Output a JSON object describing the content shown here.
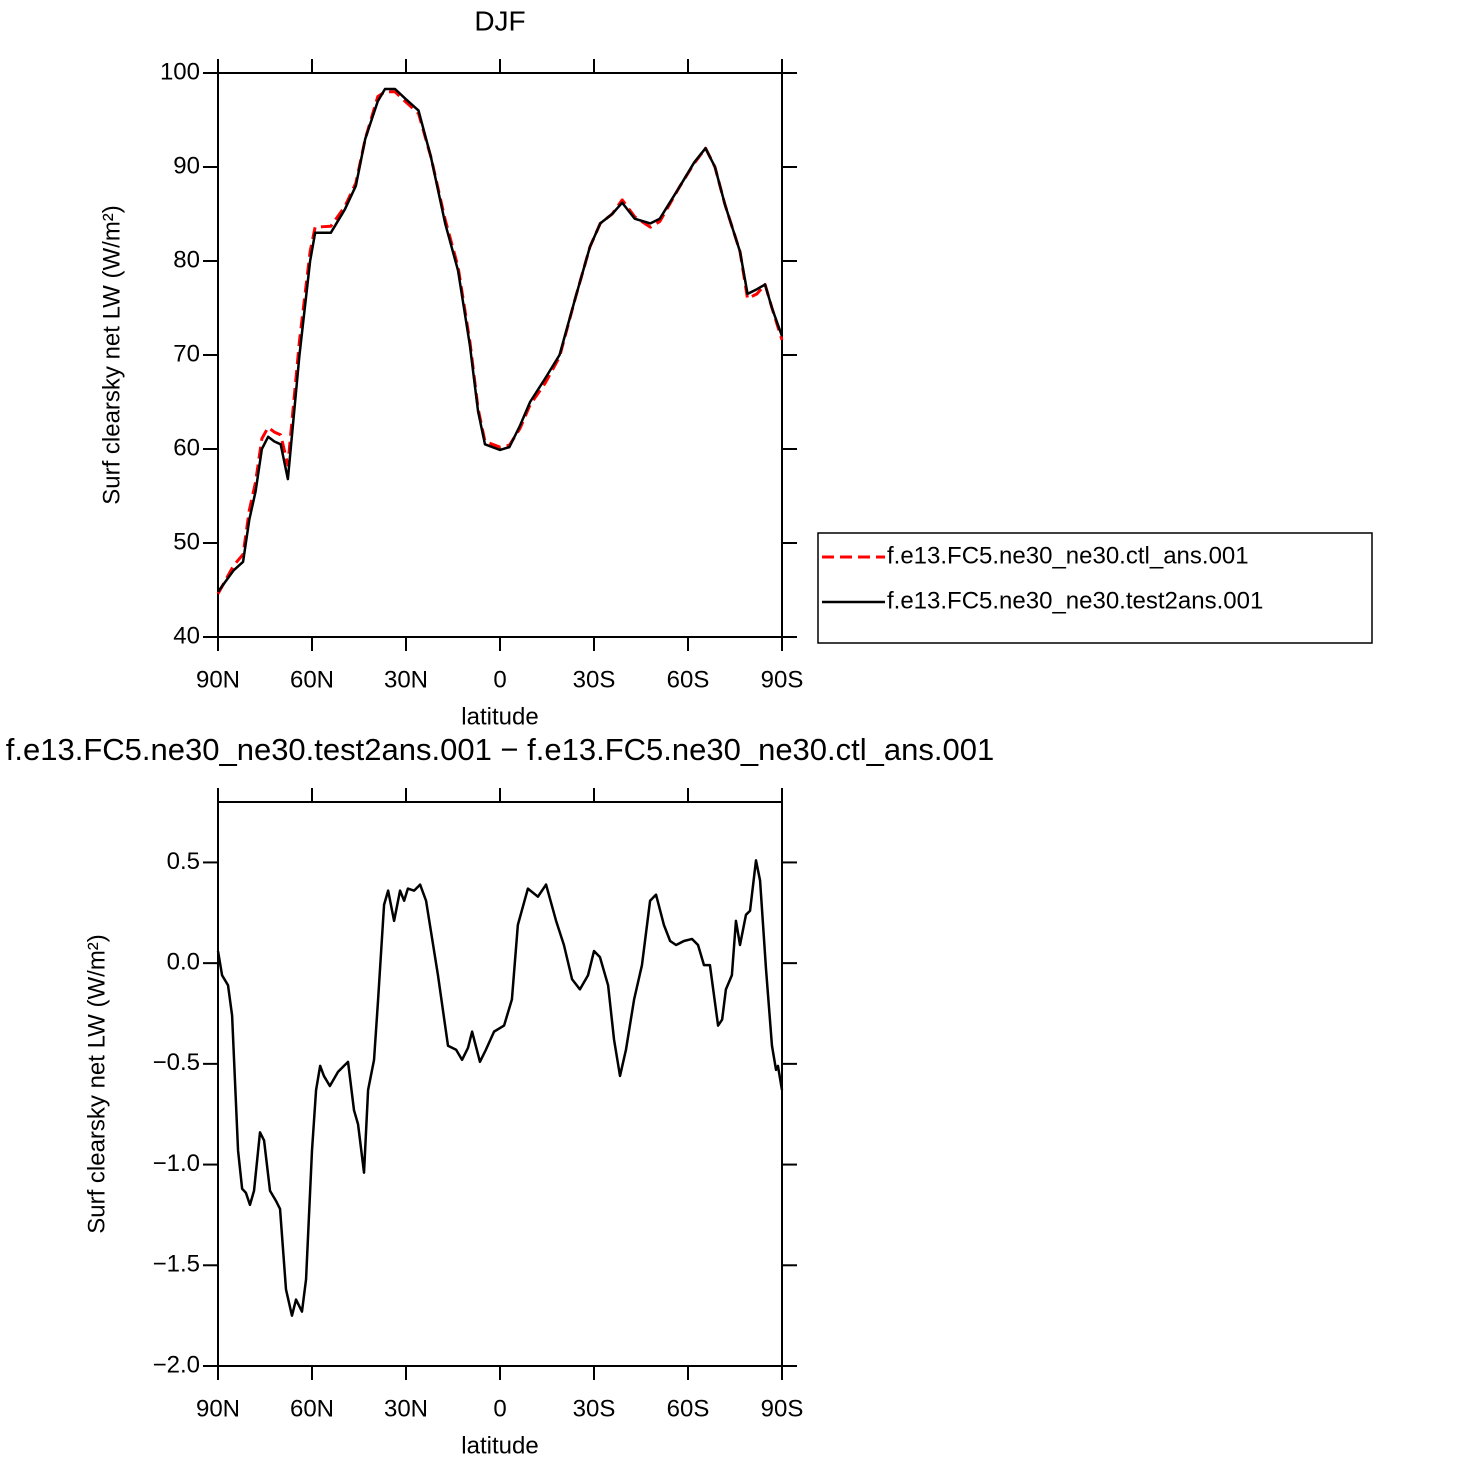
{
  "chart_data": [
    {
      "type": "line",
      "title": "DJF",
      "x_label": "latitude",
      "y_label": "Surf clearsky net LW (W/m²)",
      "x": [
        90,
        85,
        82,
        80,
        78,
        76,
        74,
        72,
        70,
        67.7,
        64,
        60.6,
        59,
        54,
        49.5,
        46,
        43,
        39,
        36.7,
        33.5,
        30,
        26,
        22,
        17.5,
        13.4,
        9.6,
        7,
        4.8,
        0,
        -3,
        -6.4,
        -9.6,
        -14.4,
        -19,
        -24,
        -28.7,
        -32,
        -35.8,
        -39,
        -43,
        -48,
        -51,
        -57.5,
        -62,
        -65.6,
        -68.6,
        -71.8,
        -76.6,
        -79,
        -82,
        -84.6,
        -86.8,
        -90
      ],
      "series": [
        {
          "name": "f.e13.FC5.ne30_ne30.ctl_ans.001",
          "color": "#ff0000",
          "line_style": "dashed",
          "values": [
            44.6,
            47.6,
            48.8,
            53.5,
            56.5,
            61.1,
            62.3,
            61.8,
            61.5,
            58.3,
            71.5,
            81,
            83.6,
            83.7,
            85.8,
            88.3,
            93,
            97.5,
            98,
            98,
            96.9,
            95.7,
            91,
            84.4,
            79.4,
            71.4,
            64.3,
            60.8,
            60.2,
            60.4,
            62.2,
            64.7,
            67,
            69.8,
            76,
            81.5,
            84,
            85,
            86.5,
            84.7,
            83.6,
            84.2,
            88,
            90.4,
            92,
            90,
            86,
            81,
            76,
            76.5,
            77.5,
            75,
            71.6
          ]
        },
        {
          "name": "f.e13.FC5.ne30_ne30.test2ans.001",
          "color": "#000000",
          "line_style": "solid",
          "values": [
            44.8,
            47.1,
            48,
            52.5,
            55.5,
            60,
            61.3,
            60.8,
            60.5,
            56.8,
            70,
            80,
            83,
            83,
            85.5,
            88,
            93,
            97,
            98.3,
            98.3,
            97.2,
            96,
            91,
            84,
            79,
            71,
            64,
            60.5,
            59.9,
            60.2,
            62.5,
            65,
            67.5,
            70,
            76,
            81.5,
            84,
            85,
            86.2,
            84.5,
            84,
            84.5,
            88,
            90.5,
            92,
            90,
            86,
            81,
            76.5,
            77,
            77.5,
            75,
            72
          ]
        }
      ],
      "xlim": [
        90,
        -90
      ],
      "xticks": [
        {
          "value": 90,
          "label": "90N"
        },
        {
          "value": 60,
          "label": "60N"
        },
        {
          "value": 30,
          "label": "30N"
        },
        0,
        {
          "value": -30,
          "label": "30S"
        },
        {
          "value": -60,
          "label": "60S"
        },
        {
          "value": -90,
          "label": "90S"
        }
      ],
      "ylim": [
        40,
        100
      ],
      "yticks": [
        40,
        50,
        60,
        70,
        80,
        90,
        100
      ],
      "grid": false,
      "legend": "right"
    },
    {
      "type": "line",
      "title": "f.e13.FC5.ne30_ne30.test2ans.001 − f.e13.FC5.ne30_ne30.ctl_ans.001",
      "x_label": "latitude",
      "y_label": "Surf clearsky net LW (W/m²)",
      "x": [
        90,
        88.7,
        86.8,
        85.5,
        83.6,
        82.3,
        81.1,
        79.8,
        78.5,
        76.6,
        75.3,
        73.4,
        71.5,
        70.2,
        68.3,
        66.4,
        65.1,
        63.2,
        61.9,
        60,
        58.7,
        57.4,
        56.2,
        54.3,
        51.7,
        49.8,
        48.5,
        46.6,
        45.3,
        43.4,
        42.1,
        40.2,
        38.9,
        37,
        35.7,
        33.8,
        31.9,
        30.6,
        29.4,
        27.4,
        25.5,
        23.6,
        19.8,
        16.6,
        14,
        12.1,
        10.2,
        8.9,
        6.4,
        4.5,
        1.9,
        -1.3,
        -3.8,
        -5.7,
        -8.9,
        -12.1,
        -14.7,
        -17.9,
        -20.4,
        -23,
        -25.5,
        -28.1,
        -30,
        -31.9,
        -34.5,
        -36.4,
        -38.3,
        -40.2,
        -42.8,
        -45.3,
        -47.9,
        -49.8,
        -52.3,
        -54.3,
        -56.2,
        -58.7,
        -61.3,
        -63.2,
        -65.1,
        -67,
        -69.6,
        -70.9,
        -72.1,
        -74,
        -75.3,
        -76.6,
        -78.5,
        -79.8,
        -81.7,
        -83,
        -84.9,
        -86.8,
        -88.1,
        -88.7,
        -90
      ],
      "values": [
        0.06,
        -0.06,
        -0.11,
        -0.26,
        -0.93,
        -1.12,
        -1.14,
        -1.2,
        -1.13,
        -0.84,
        -0.88,
        -1.13,
        -1.18,
        -1.22,
        -1.62,
        -1.75,
        -1.67,
        -1.73,
        -1.57,
        -0.93,
        -0.63,
        -0.51,
        -0.56,
        -0.61,
        -0.54,
        -0.51,
        -0.49,
        -0.73,
        -0.8,
        -1.04,
        -0.63,
        -0.48,
        -0.18,
        0.29,
        0.36,
        0.21,
        0.36,
        0.31,
        0.37,
        0.36,
        0.39,
        0.31,
        -0.06,
        -0.41,
        -0.43,
        -0.48,
        -0.42,
        -0.34,
        -0.49,
        -0.43,
        -0.34,
        -0.31,
        -0.18,
        0.19,
        0.37,
        0.33,
        0.39,
        0.21,
        0.09,
        -0.08,
        -0.13,
        -0.06,
        0.06,
        0.03,
        -0.11,
        -0.38,
        -0.56,
        -0.43,
        -0.18,
        -0.01,
        0.31,
        0.34,
        0.19,
        0.11,
        0.09,
        0.11,
        0.12,
        0.09,
        -0.01,
        -0.01,
        -0.31,
        -0.28,
        -0.13,
        -0.06,
        0.21,
        0.09,
        0.24,
        0.26,
        0.51,
        0.41,
        -0.03,
        -0.41,
        -0.53,
        -0.51,
        -0.63
      ],
      "color": "#000000",
      "xlim": [
        90,
        -90
      ],
      "xticks": [
        {
          "value": 90,
          "label": "90N"
        },
        {
          "value": 60,
          "label": "60N"
        },
        {
          "value": 30,
          "label": "30N"
        },
        0,
        {
          "value": -30,
          "label": "30S"
        },
        {
          "value": -60,
          "label": "60S"
        },
        {
          "value": -90,
          "label": "90S"
        }
      ],
      "ylim": [
        -2.0,
        0.8
      ],
      "yticks": [
        {
          "value": -2.0,
          "label": "−2.0"
        },
        {
          "value": -1.5,
          "label": "−1.5"
        },
        {
          "value": -1.0,
          "label": "−1.0"
        },
        {
          "value": -0.5,
          "label": "−0.5"
        },
        {
          "value": 0.0,
          "label": "0.0"
        },
        0.5
      ],
      "grid": false
    }
  ]
}
